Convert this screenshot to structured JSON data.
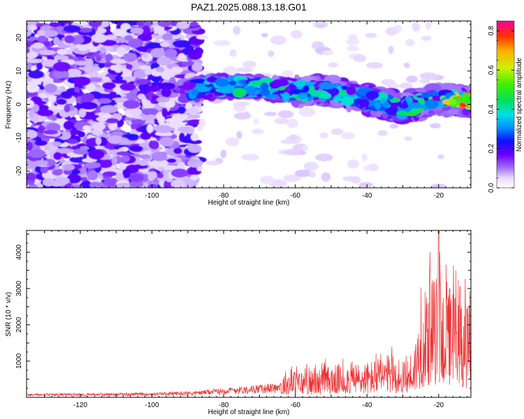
{
  "title": "PAZ1.2025.088.13.18.G01",
  "chart_data": [
    {
      "type": "heatmap",
      "xlabel": "Height of straight line (km)",
      "ylabel": "Frequency (Hz)",
      "xlim": [
        -135,
        -11
      ],
      "ylim": [
        -25,
        25
      ],
      "xticks": [
        "-120",
        "-100",
        "-80",
        "-60",
        "-40",
        "-20"
      ],
      "yticks": [
        "-20",
        "-10",
        "0",
        "10",
        "20"
      ],
      "colorbar": {
        "label": "Normalized spectral amplitude",
        "range": [
          0,
          0.85
        ],
        "ticks": [
          "0.0",
          "0.2",
          "0.4",
          "0.6",
          "0.8"
        ]
      },
      "ridge": {
        "description_points_x": [
          -90,
          -80,
          -70,
          -60,
          -50,
          -40,
          -30,
          -20,
          -11
        ],
        "freq_center_hz": [
          4.5,
          5.5,
          5.0,
          4.0,
          4.0,
          1.5,
          -1.0,
          1.5,
          1.0
        ],
        "peak_amplitude": [
          0.3,
          0.45,
          0.45,
          0.45,
          0.45,
          0.4,
          0.45,
          0.55,
          0.85
        ]
      },
      "grid": false,
      "colormap": "rainbow"
    },
    {
      "type": "line",
      "xlabel": "Height of straight line (km)",
      "ylabel": "SNR (10 * v/v)",
      "xlim": [
        -135,
        -11
      ],
      "ylim": [
        0,
        4600
      ],
      "xticks": [
        "-120",
        "-100",
        "-80",
        "-60",
        "-40",
        "-20"
      ],
      "yticks": [
        "1000",
        "2000",
        "3000",
        "4000"
      ],
      "color": "#ee3333",
      "envelope": {
        "x": [
          -135,
          -100,
          -87,
          -80,
          -70,
          -64,
          -63,
          -55,
          -50,
          -40,
          -33,
          -30,
          -27,
          -25,
          -22,
          -19,
          -15,
          -11
        ],
        "y": [
          100,
          130,
          180,
          260,
          350,
          400,
          750,
          750,
          900,
          1000,
          1200,
          900,
          1400,
          2500,
          3400,
          3300,
          3000,
          2400
        ]
      },
      "peak": {
        "x": -20,
        "y": 4600
      },
      "grid": false
    }
  ]
}
